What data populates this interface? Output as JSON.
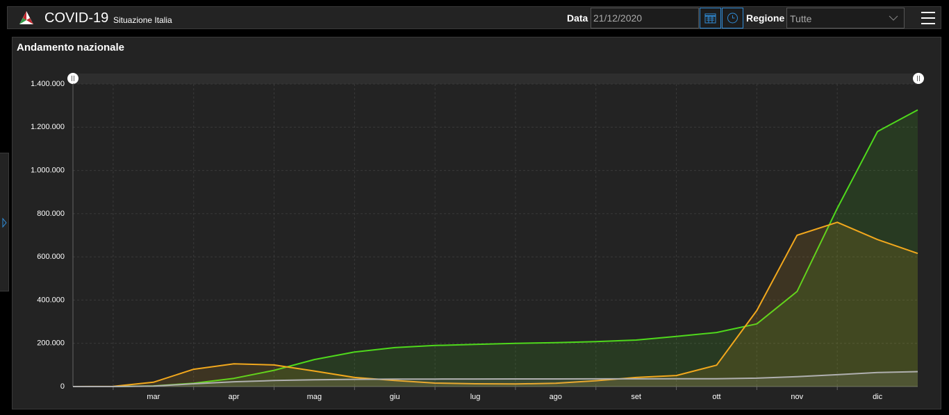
{
  "header": {
    "title": "COVID-19",
    "subtitle": "Situazione Italia",
    "date_label": "Data",
    "date_value": "21/12/2020",
    "region_label": "Regione",
    "region_value": "Tutte"
  },
  "chart_data": {
    "type": "area",
    "title": "Andamento nazionale",
    "categories": [
      null,
      null,
      "mar",
      null,
      "apr",
      null,
      "mag",
      null,
      "giu",
      null,
      "lug",
      null,
      "ago",
      null,
      "set",
      null,
      "ott",
      null,
      "nov",
      null,
      "dic",
      null
    ],
    "series": [
      {
        "color": "#4fd91c",
        "values": [
          0,
          0,
          3000,
          15000,
          38000,
          75000,
          125000,
          160000,
          180000,
          190000,
          195000,
          200000,
          203000,
          208000,
          215000,
          232000,
          250000,
          290000,
          440000,
          825000,
          1180000,
          1280000
        ]
      },
      {
        "color": "#f2a81d",
        "values": [
          0,
          1000,
          20000,
          80000,
          105000,
          100000,
          72000,
          42000,
          28000,
          16000,
          13000,
          12000,
          15000,
          27000,
          42000,
          51000,
          99000,
          352000,
          700000,
          760000,
          680000,
          616000
        ]
      },
      {
        "color": "#b0b0b0",
        "values": [
          0,
          0,
          2000,
          13000,
          22000,
          28000,
          31500,
          33400,
          34300,
          34800,
          35100,
          35200,
          35400,
          35500,
          35600,
          36000,
          36400,
          39000,
          46000,
          55000,
          65000,
          69000
        ]
      }
    ],
    "ylim": [
      0,
      1400000
    ],
    "yticks": [
      0,
      {
        "value": 200000,
        "label": "200.000"
      },
      {
        "value": 400000,
        "label": "400.000"
      },
      {
        "value": 600000,
        "label": "600.000"
      },
      {
        "value": 800000,
        "label": "800.000"
      },
      {
        "value": 1000000,
        "label": "1.000.000"
      },
      {
        "value": 1200000,
        "label": "1.200.000"
      },
      {
        "value": 1400000,
        "label": "1.400.000"
      }
    ],
    "grid": true
  }
}
